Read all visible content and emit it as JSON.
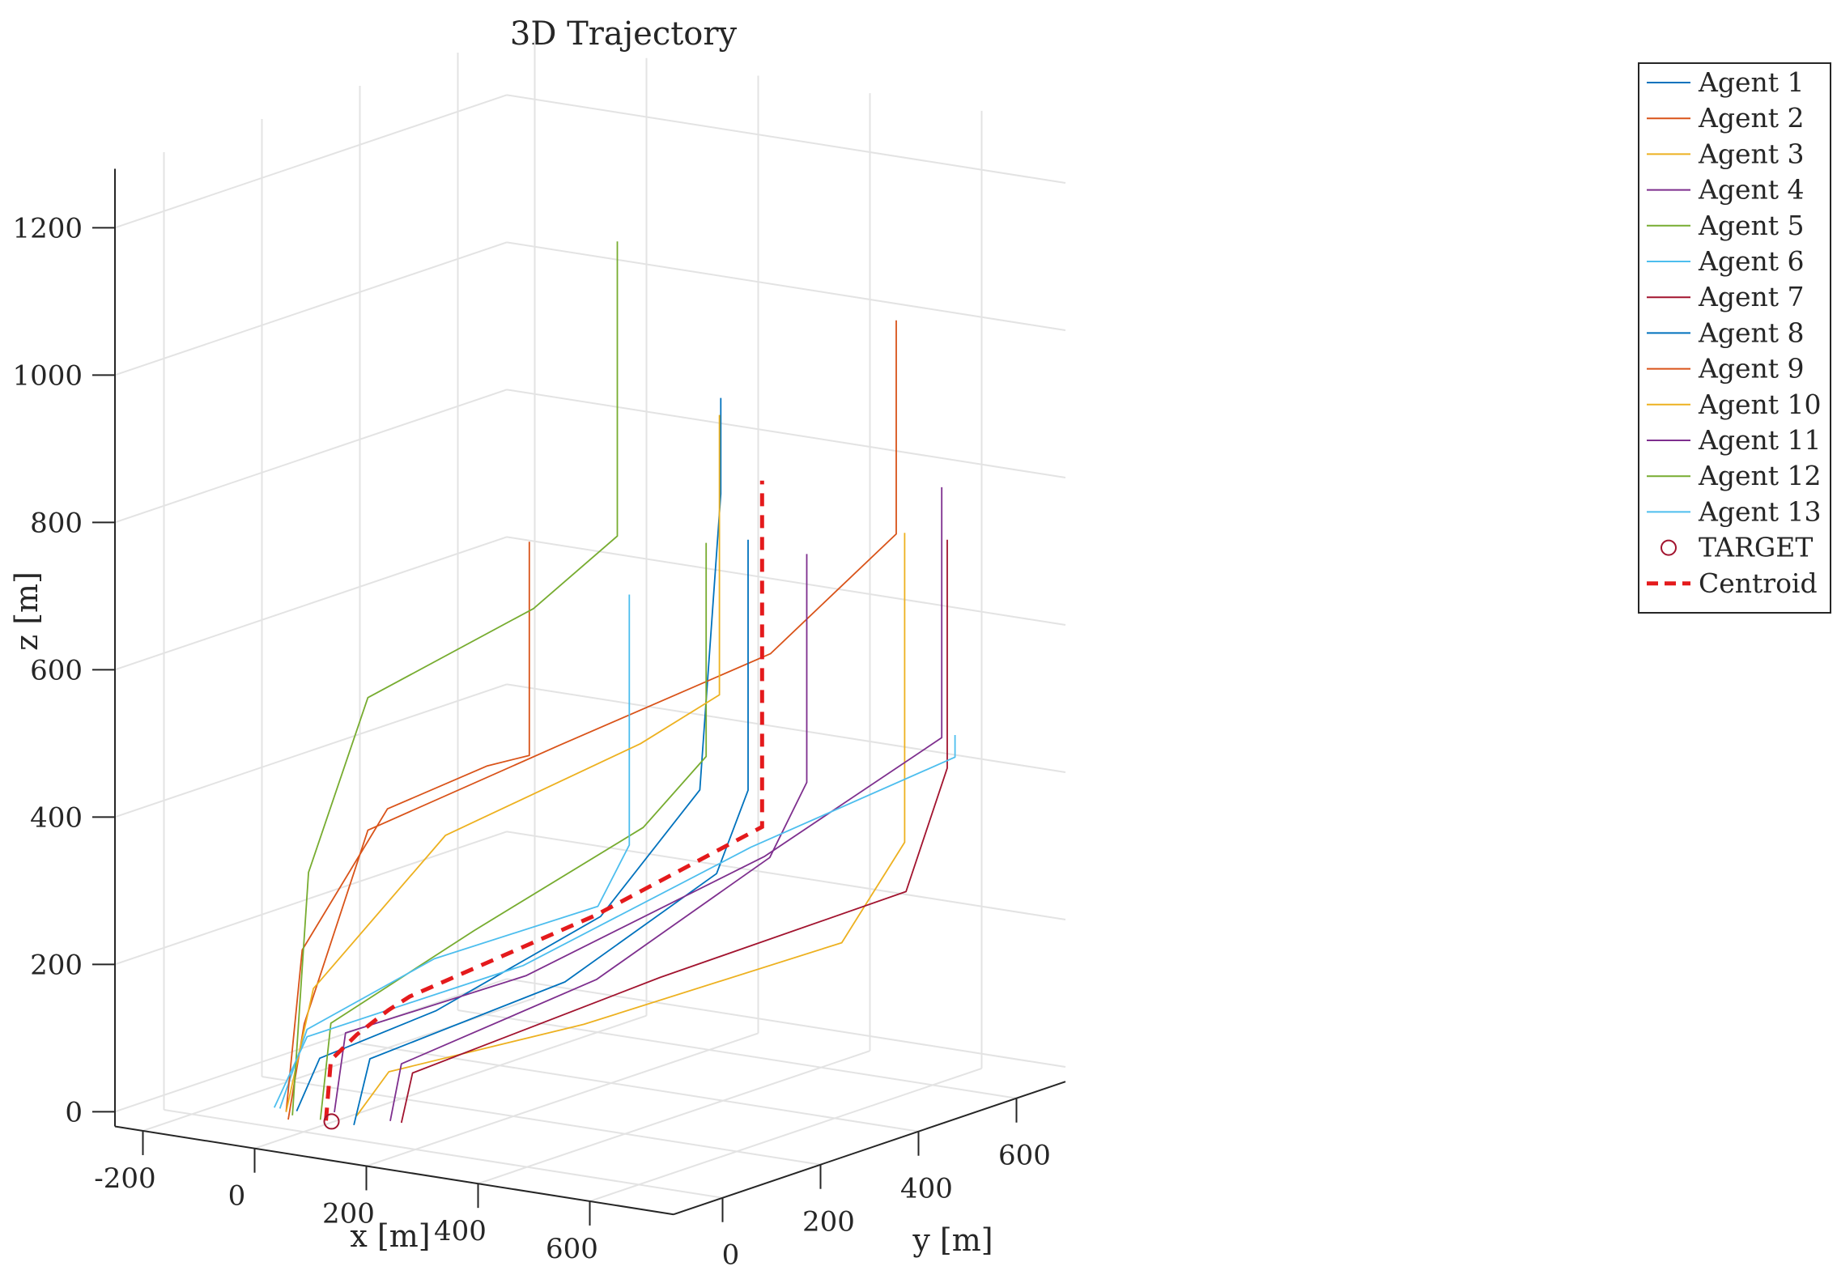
{
  "chart_data": {
    "type": "line3d",
    "title": "3D Trajectory",
    "xlabel": "x [m]",
    "ylabel": "y [m]",
    "zlabel": "z [m]",
    "xlim": [
      -250,
      750
    ],
    "ylim": [
      -100,
      700
    ],
    "zlim": [
      -20,
      1280
    ],
    "x_ticks": [
      "-200",
      "0",
      "200",
      "400",
      "600"
    ],
    "y_ticks": [
      "0",
      "200",
      "400",
      "600"
    ],
    "z_ticks": [
      "0",
      "200",
      "400",
      "600",
      "800",
      "1000",
      "1200"
    ],
    "grid": "on",
    "legend_position": "top-right outside",
    "series": [
      {
        "name": "Agent 1",
        "color": "#0072BD",
        "points": [
          [
            -30,
            20,
            0
          ],
          [
            20,
            10,
            80
          ],
          [
            150,
            100,
            140
          ],
          [
            330,
            230,
            260
          ],
          [
            420,
            330,
            420
          ],
          [
            440,
            350,
            820
          ],
          [
            440,
            350,
            950
          ]
        ]
      },
      {
        "name": "Agent 2",
        "color": "#D95319",
        "points": [
          [
            -10,
            -20,
            0
          ],
          [
            10,
            -10,
            130
          ],
          [
            80,
            40,
            390
          ],
          [
            300,
            180,
            500
          ],
          [
            520,
            360,
            610
          ],
          [
            640,
            480,
            760
          ],
          [
            640,
            480,
            1050
          ]
        ]
      },
      {
        "name": "Agent 3",
        "color": "#EDB120",
        "points": [
          [
            60,
            40,
            0
          ],
          [
            100,
            60,
            60
          ],
          [
            300,
            230,
            110
          ],
          [
            560,
            460,
            200
          ],
          [
            620,
            520,
            330
          ],
          [
            620,
            520,
            750
          ]
        ]
      },
      {
        "name": "Agent 4",
        "color": "#7E2F8E",
        "points": [
          [
            120,
            40,
            0
          ],
          [
            140,
            40,
            80
          ],
          [
            340,
            210,
            180
          ],
          [
            510,
            370,
            330
          ],
          [
            550,
            400,
            430
          ],
          [
            550,
            400,
            740
          ]
        ]
      },
      {
        "name": "Agent 5",
        "color": "#77AC30",
        "points": [
          [
            30,
            0,
            0
          ],
          [
            40,
            10,
            130
          ],
          [
            200,
            120,
            250
          ],
          [
            380,
            260,
            380
          ],
          [
            440,
            320,
            470
          ],
          [
            440,
            320,
            760
          ]
        ]
      },
      {
        "name": "Agent 6",
        "color": "#4DBEEE",
        "points": [
          [
            -60,
            20,
            0
          ],
          [
            -20,
            30,
            110
          ],
          [
            120,
            130,
            200
          ],
          [
            290,
            270,
            260
          ],
          [
            320,
            300,
            340
          ],
          [
            320,
            300,
            680
          ]
        ]
      },
      {
        "name": "Agent 7",
        "color": "#A2142F",
        "points": [
          [
            140,
            40,
            0
          ],
          [
            160,
            40,
            70
          ],
          [
            410,
            260,
            180
          ],
          [
            640,
            500,
            270
          ],
          [
            670,
            550,
            430
          ],
          [
            670,
            550,
            740
          ]
        ]
      },
      {
        "name": "Agent 8",
        "color": "#0072BD",
        "points": [
          [
            90,
            0,
            0
          ],
          [
            110,
            10,
            90
          ],
          [
            310,
            180,
            180
          ],
          [
            450,
            330,
            310
          ],
          [
            480,
            360,
            420
          ],
          [
            480,
            360,
            760
          ]
        ]
      },
      {
        "name": "Agent 9",
        "color": "#D95319",
        "points": [
          [
            -40,
            10,
            0
          ],
          [
            -20,
            20,
            220
          ],
          [
            80,
            80,
            410
          ],
          [
            180,
            170,
            460
          ],
          [
            220,
            210,
            470
          ],
          [
            220,
            210,
            760
          ]
        ]
      },
      {
        "name": "Agent 10",
        "color": "#EDB120",
        "points": [
          [
            -40,
            10,
            0
          ],
          [
            0,
            20,
            170
          ],
          [
            140,
            130,
            370
          ],
          [
            340,
            300,
            480
          ],
          [
            420,
            370,
            540
          ],
          [
            420,
            370,
            920
          ]
        ]
      },
      {
        "name": "Agent 11",
        "color": "#7E2F8E",
        "points": [
          [
            20,
            40,
            0
          ],
          [
            40,
            40,
            110
          ],
          [
            240,
            180,
            180
          ],
          [
            500,
            370,
            330
          ],
          [
            660,
            550,
            470
          ],
          [
            660,
            550,
            810
          ]
        ]
      },
      {
        "name": "Agent 12",
        "color": "#77AC30",
        "points": [
          [
            -20,
            0,
            0
          ],
          [
            0,
            10,
            330
          ],
          [
            80,
            40,
            570
          ],
          [
            280,
            150,
            690
          ],
          [
            360,
            230,
            780
          ],
          [
            360,
            230,
            1180
          ]
        ]
      },
      {
        "name": "Agent 13",
        "color": "#4DBEEE",
        "points": [
          [
            -70,
            20,
            0
          ],
          [
            -20,
            30,
            100
          ],
          [
            200,
            220,
            180
          ],
          [
            450,
            400,
            330
          ],
          [
            640,
            600,
            430
          ],
          [
            640,
            600,
            460
          ]
        ]
      }
    ],
    "target": {
      "name": "TARGET",
      "color": "#A2142F",
      "point": [
        50,
        0,
        0
      ]
    },
    "centroid": {
      "name": "Centroid",
      "color": "#E41A1C",
      "style": "dashed",
      "points": [
        [
          40,
          0,
          0
        ],
        [
          40,
          10,
          80
        ],
        [
          60,
          40,
          110
        ],
        [
          90,
          70,
          140
        ],
        [
          120,
          80,
          160
        ],
        [
          320,
          230,
          260
        ],
        [
          470,
          400,
          360
        ],
        [
          470,
          400,
          380
        ],
        [
          470,
          400,
          830
        ]
      ]
    }
  }
}
